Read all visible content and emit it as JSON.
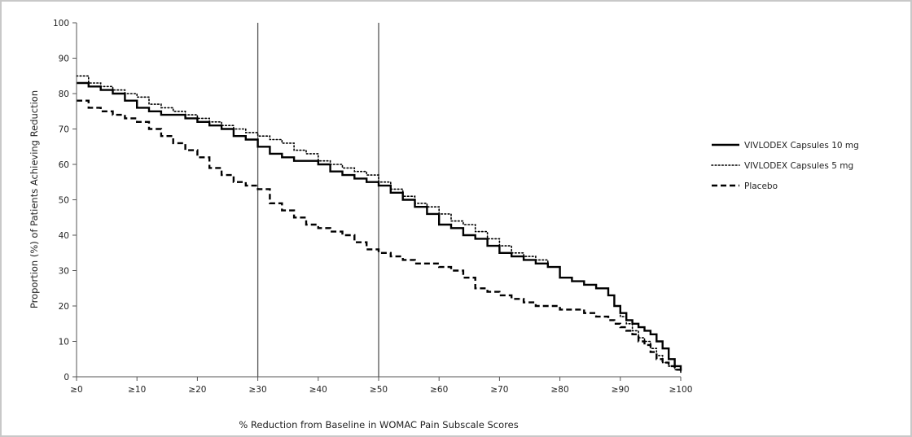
{
  "chart_data": {
    "type": "line",
    "title": "",
    "xlabel": "% Reduction from Baseline in WOMAC Pain Subscale Scores",
    "ylabel": "Proportion (%) of Patients Achieving Reduction",
    "xlim": [
      0,
      100
    ],
    "ylim": [
      0,
      100
    ],
    "x_ticks": [
      0,
      10,
      20,
      30,
      40,
      50,
      60,
      70,
      80,
      90,
      100
    ],
    "x_tick_labels": [
      "≥0",
      "≥10",
      "≥20",
      "≥30",
      "≥40",
      "≥50",
      "≥60",
      "≥70",
      "≥80",
      "≥90",
      "≥100"
    ],
    "y_ticks": [
      0,
      10,
      20,
      30,
      40,
      50,
      60,
      70,
      80,
      90,
      100
    ],
    "y_tick_labels": [
      "0",
      "10",
      "20",
      "30",
      "40",
      "50",
      "60",
      "70",
      "80",
      "90",
      "100"
    ],
    "grid": false,
    "legend_position": "right",
    "reference_lines_x": [
      30,
      50
    ],
    "series": [
      {
        "name": "VIVLODEX Capsules 10 mg",
        "style": "solid",
        "color": "#000000",
        "x": [
          0,
          2,
          4,
          6,
          8,
          10,
          12,
          14,
          16,
          18,
          20,
          22,
          24,
          26,
          28,
          30,
          32,
          34,
          36,
          38,
          40,
          42,
          44,
          46,
          48,
          50,
          52,
          54,
          56,
          58,
          60,
          62,
          64,
          66,
          68,
          70,
          72,
          74,
          76,
          78,
          80,
          82,
          84,
          86,
          88,
          89,
          90,
          91,
          92,
          93,
          94,
          95,
          96,
          97,
          98,
          99,
          100
        ],
        "y": [
          83,
          82,
          81,
          80,
          78,
          76,
          75,
          74,
          74,
          73,
          72,
          71,
          70,
          68,
          67,
          65,
          63,
          62,
          61,
          61,
          60,
          58,
          57,
          56,
          55,
          54,
          52,
          50,
          48,
          46,
          43,
          42,
          40,
          39,
          37,
          35,
          34,
          33,
          32,
          31,
          28,
          27,
          26,
          25,
          23,
          20,
          18,
          16,
          15,
          14,
          13,
          12,
          10,
          8,
          5,
          3,
          2
        ]
      },
      {
        "name": "VIVLODEX Capsules 5 mg",
        "style": "dotted",
        "color": "#000000",
        "x": [
          0,
          2,
          4,
          6,
          8,
          10,
          12,
          14,
          16,
          18,
          20,
          22,
          24,
          26,
          28,
          30,
          32,
          34,
          36,
          38,
          40,
          42,
          44,
          46,
          48,
          50,
          52,
          54,
          56,
          58,
          60,
          62,
          64,
          66,
          68,
          70,
          72,
          74,
          76,
          78,
          80,
          82,
          84,
          86,
          88,
          89,
          90,
          91,
          92,
          93,
          94,
          95,
          96,
          97,
          98,
          99,
          100
        ],
        "y": [
          85,
          83,
          82,
          81,
          80,
          79,
          77,
          76,
          75,
          74,
          73,
          72,
          71,
          70,
          69,
          68,
          67,
          66,
          64,
          63,
          61,
          60,
          59,
          58,
          57,
          55,
          53,
          51,
          49,
          48,
          46,
          44,
          43,
          41,
          39,
          37,
          35,
          34,
          33,
          31,
          28,
          27,
          26,
          25,
          23,
          20,
          17,
          15,
          13,
          11,
          10,
          8,
          6,
          4,
          3,
          2,
          1
        ]
      },
      {
        "name": "Placebo",
        "style": "dashed",
        "color": "#000000",
        "x": [
          0,
          2,
          4,
          6,
          8,
          10,
          12,
          14,
          16,
          18,
          20,
          22,
          24,
          26,
          28,
          30,
          32,
          34,
          36,
          38,
          40,
          42,
          44,
          46,
          48,
          50,
          52,
          54,
          56,
          58,
          60,
          62,
          64,
          66,
          68,
          70,
          72,
          74,
          76,
          78,
          80,
          82,
          84,
          86,
          88,
          89,
          90,
          91,
          92,
          93,
          94,
          95,
          96,
          97,
          98,
          99,
          100
        ],
        "y": [
          78,
          76,
          75,
          74,
          73,
          72,
          70,
          68,
          66,
          64,
          62,
          59,
          57,
          55,
          54,
          53,
          49,
          47,
          45,
          43,
          42,
          41,
          40,
          38,
          36,
          35,
          34,
          33,
          32,
          32,
          31,
          30,
          28,
          25,
          24,
          23,
          22,
          21,
          20,
          20,
          19,
          19,
          18,
          17,
          16,
          15,
          14,
          13,
          12,
          10,
          9,
          7,
          5,
          4,
          3,
          2,
          1
        ]
      }
    ]
  }
}
